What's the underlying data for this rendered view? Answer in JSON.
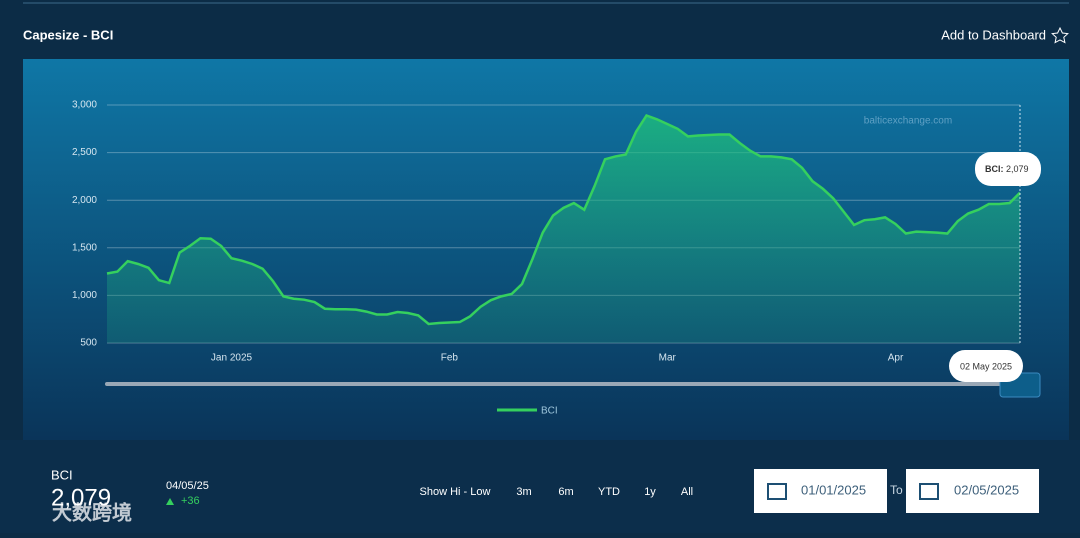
{
  "header": {
    "title": "Capesize - BCI",
    "action": "Add to Dashboard"
  },
  "chart_data": {
    "type": "area",
    "series": [
      {
        "name": "BCI",
        "color": "#35d05e",
        "values": [
          1230,
          1250,
          1360,
          1330,
          1290,
          1160,
          1130,
          1450,
          1520,
          1600,
          1595,
          1520,
          1390,
          1365,
          1330,
          1280,
          1150,
          990,
          965,
          955,
          930,
          860,
          855,
          855,
          850,
          830,
          800,
          800,
          825,
          815,
          790,
          700,
          710,
          715,
          720,
          780,
          880,
          950,
          990,
          1015,
          1120,
          1380,
          1660,
          1840,
          1920,
          1970,
          1900,
          2150,
          2430,
          2460,
          2480,
          2720,
          2890,
          2850,
          2800,
          2750,
          2670,
          2680,
          2685,
          2690,
          2690,
          2600,
          2520,
          2460,
          2460,
          2450,
          2430,
          2340,
          2200,
          2120,
          2020,
          1880,
          1740,
          1790,
          1800,
          1820,
          1750,
          1650,
          1670,
          1665,
          1660,
          1650,
          1780,
          1860,
          1900,
          1960,
          1960,
          1970,
          2079
        ]
      }
    ],
    "ylim": [
      500,
      3000
    ],
    "yticks": [
      500,
      {
        "value": 1000,
        "label": "1,000"
      },
      {
        "value": 1500,
        "label": "1,500"
      },
      {
        "value": 2000,
        "label": "2,000"
      },
      {
        "value": 2500,
        "label": "2,500"
      },
      {
        "value": 3000,
        "label": "3,000"
      }
    ],
    "xticks": [
      {
        "value": 12,
        "label": "Jan 2025"
      },
      {
        "value": 33,
        "label": "Feb"
      },
      {
        "value": 54,
        "label": "Mar"
      },
      {
        "value": 76,
        "label": "Apr"
      }
    ],
    "grid": true,
    "tooltip": {
      "series": "BCI:",
      "value_label": "2,079",
      "date": "02 May 2025"
    },
    "credit": "balticexchange.com"
  },
  "footer": {
    "name": "BCI",
    "value": "2,079",
    "date": "04/05/25",
    "change": "+36",
    "ranges": [
      "Show Hi - Low",
      "3m",
      "6m",
      "YTD",
      "1y",
      "All"
    ],
    "from": "01/01/2025",
    "to_label": "To",
    "to": "02/05/2025"
  },
  "watermark": "大数跨境"
}
